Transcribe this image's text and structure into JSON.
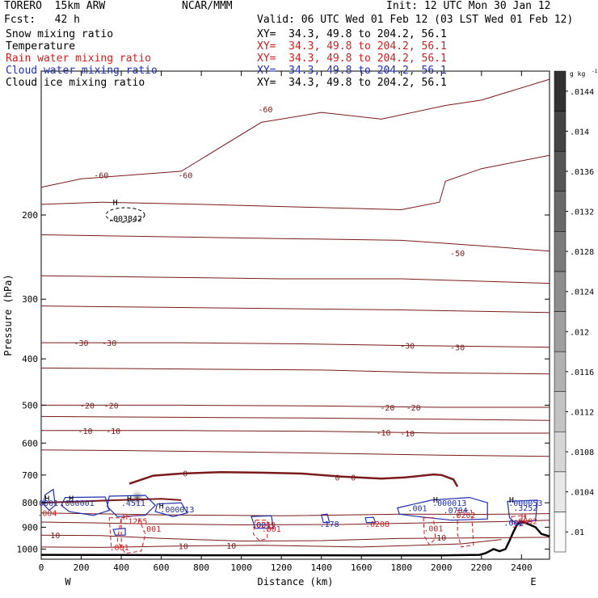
{
  "header": {
    "model": "TORERO  15km ARW",
    "org": "NCAR/MMM",
    "init": "Init: 12 UTC Mon 30 Jan 12",
    "fcst": "Fcst:   42 h",
    "valid": "Valid: 06 UTC Wed 01 Feb 12 (03 LST Wed 01 Feb 12)"
  },
  "fields": [
    {
      "name": "Snow mixing ratio",
      "color": "#000000",
      "xy": ""
    },
    {
      "name": "Temperature",
      "color": "#000000",
      "xy": "XY=  34.3, 49.8 to 204.2, 56.1"
    },
    {
      "name": "Rain water mixing ratio",
      "color": "#cc1f1f",
      "xy": "XY=  34.3, 49.8 to 204.2, 56.1"
    },
    {
      "name": "Cloud water mixing ratio",
      "color": "#1f2faf",
      "xy": "XY=  34.3, 49.8 to 204.2, 56.1"
    },
    {
      "name": "Cloud ice mixing ratio",
      "color": "#000000",
      "xy": "XY=  34.3, 49.8 to 204.2, 56.1"
    }
  ],
  "xy_top": "XY=  34.3, 49.8 to 204.2, 56.1",
  "chart_data": {
    "type": "contour",
    "xlabel": "Distance (km)",
    "ylabel": "Pressure (hPa)",
    "xlim": [
      0,
      2540
    ],
    "ylim": [
      1050,
      100
    ],
    "x_ticks": [
      0,
      200,
      400,
      600,
      800,
      1000,
      1200,
      1400,
      1600,
      1800,
      2000,
      2200,
      2400
    ],
    "y_ticks": [
      200,
      300,
      400,
      500,
      600,
      700,
      800,
      900,
      1000
    ],
    "x_end_labels": {
      "left": "W",
      "right": "E"
    },
    "colorbar": {
      "unit": "g kg",
      "unit_exp": "-1",
      "ticks": [
        ".01",
        ".0104",
        ".0108",
        ".0112",
        ".0116",
        ".012",
        ".0124",
        ".0128",
        ".0132",
        ".0136",
        ".014",
        ".0144"
      ]
    },
    "temperature_labels": [
      {
        "text": "-60",
        "x": 1120,
        "p": 120
      },
      {
        "text": "-60",
        "x": 720,
        "p": 165
      },
      {
        "text": "-60",
        "x": 300,
        "p": 165
      },
      {
        "text": "-50",
        "x": 2080,
        "p": 240
      },
      {
        "text": "-30",
        "x": 200,
        "p": 370
      },
      {
        "text": "-30",
        "x": 340,
        "p": 370
      },
      {
        "text": "-30",
        "x": 1830,
        "p": 375
      },
      {
        "text": "-30",
        "x": 2080,
        "p": 378
      },
      {
        "text": "-20",
        "x": 230,
        "p": 500
      },
      {
        "text": "-20",
        "x": 350,
        "p": 500
      },
      {
        "text": "-20",
        "x": 1730,
        "p": 505
      },
      {
        "text": "-20",
        "x": 1860,
        "p": 505
      },
      {
        "text": "-10",
        "x": 220,
        "p": 565
      },
      {
        "text": "-10",
        "x": 360,
        "p": 565
      },
      {
        "text": "-10",
        "x": 1710,
        "p": 570
      },
      {
        "text": "-10",
        "x": 1830,
        "p": 572
      },
      {
        "text": "0",
        "x": 720,
        "p": 693
      },
      {
        "text": "0",
        "x": 1480,
        "p": 707
      },
      {
        "text": "0",
        "x": 1560,
        "p": 707
      },
      {
        "text": "10",
        "x": 70,
        "p": 935
      },
      {
        "text": "10",
        "x": 710,
        "p": 985
      },
      {
        "text": "10",
        "x": 950,
        "p": 982
      },
      {
        "text": "10",
        "x": 2000,
        "p": 945
      }
    ],
    "isotherms": [
      {
        "t": -60,
        "pts": [
          [
            0,
            175
          ],
          [
            200,
            168
          ],
          [
            700,
            162
          ],
          [
            1100,
            128
          ],
          [
            1400,
            122
          ],
          [
            1700,
            126
          ],
          [
            2020,
            118
          ],
          [
            2200,
            115
          ],
          [
            2540,
            104
          ]
        ]
      },
      {
        "t": -60,
        "pts": [
          [
            0,
            190
          ],
          [
            300,
            188
          ],
          [
            800,
            190
          ],
          [
            1800,
            195
          ],
          [
            1990,
            188
          ],
          [
            2020,
            170
          ],
          [
            2200,
            160
          ],
          [
            2540,
            150
          ]
        ]
      },
      {
        "t": -50,
        "pts": [
          [
            0,
            220
          ],
          [
            600,
            222
          ],
          [
            1200,
            224
          ],
          [
            1800,
            226
          ],
          [
            2200,
            232
          ],
          [
            2540,
            238
          ]
        ]
      },
      {
        "t": -40,
        "pts": [
          [
            0,
            268
          ],
          [
            600,
            270
          ],
          [
            1200,
            272
          ],
          [
            1800,
            272
          ],
          [
            2540,
            278
          ]
        ]
      },
      {
        "t": -35,
        "pts": [
          [
            0,
            310
          ],
          [
            600,
            312
          ],
          [
            1200,
            314
          ],
          [
            1800,
            316
          ],
          [
            2540,
            320
          ]
        ]
      },
      {
        "t": -30,
        "pts": [
          [
            0,
            370
          ],
          [
            700,
            370
          ],
          [
            1300,
            372
          ],
          [
            1800,
            375
          ],
          [
            2540,
            378
          ]
        ]
      },
      {
        "t": -25,
        "pts": [
          [
            0,
            418
          ],
          [
            700,
            420
          ],
          [
            1400,
            422
          ],
          [
            2000,
            428
          ],
          [
            2540,
            430
          ]
        ]
      },
      {
        "t": -20,
        "pts": [
          [
            0,
            500
          ],
          [
            700,
            500
          ],
          [
            1400,
            502
          ],
          [
            2000,
            505
          ],
          [
            2540,
            505
          ]
        ]
      },
      {
        "t": -15,
        "pts": [
          [
            0,
            528
          ],
          [
            700,
            530
          ],
          [
            1400,
            532
          ],
          [
            2000,
            535
          ],
          [
            2540,
            538
          ]
        ]
      },
      {
        "t": -10,
        "pts": [
          [
            0,
            565
          ],
          [
            700,
            565
          ],
          [
            1400,
            567
          ],
          [
            2000,
            572
          ],
          [
            2540,
            572
          ]
        ]
      },
      {
        "t": -5,
        "pts": [
          [
            0,
            620
          ],
          [
            400,
            622
          ],
          [
            800,
            625
          ],
          [
            1200,
            628
          ],
          [
            1600,
            632
          ],
          [
            2000,
            636
          ],
          [
            2540,
            640
          ]
        ]
      },
      {
        "t": 5,
        "pts": [
          [
            0,
            840
          ],
          [
            600,
            848
          ],
          [
            1200,
            852
          ],
          [
            1800,
            845
          ],
          [
            2200,
            846
          ],
          [
            2540,
            843
          ]
        ]
      },
      {
        "t": 7,
        "pts": [
          [
            0,
            878
          ],
          [
            500,
            885
          ],
          [
            1000,
            890
          ],
          [
            1500,
            888
          ],
          [
            2000,
            880
          ],
          [
            2300,
            876
          ],
          [
            2540,
            870
          ]
        ]
      },
      {
        "t": 10,
        "pts": [
          [
            0,
            935
          ],
          [
            300,
            937
          ],
          [
            600,
            950
          ],
          [
            1000,
            962
          ],
          [
            1400,
            960
          ],
          [
            1800,
            950
          ],
          [
            2540,
            945
          ]
        ]
      },
      {
        "t": 15,
        "pts": [
          [
            0,
            990
          ],
          [
            300,
            992
          ],
          [
            700,
            985
          ],
          [
            1100,
            982
          ],
          [
            1600,
            990
          ],
          [
            2100,
            975
          ],
          [
            2300,
            955
          ]
        ]
      }
    ],
    "freezing_level": {
      "t": 0,
      "pts": [
        [
          440,
          730
        ],
        [
          560,
          702
        ],
        [
          700,
          695
        ],
        [
          900,
          690
        ],
        [
          1100,
          692
        ],
        [
          1300,
          695
        ],
        [
          1500,
          705
        ],
        [
          1700,
          712
        ],
        [
          1820,
          708
        ],
        [
          1960,
          698
        ],
        [
          2000,
          700
        ],
        [
          2060,
          715
        ],
        [
          2080,
          740
        ]
      ]
    },
    "secondary_freezing": {
      "t": 0,
      "pts": [
        [
          0,
          800
        ],
        [
          200,
          795
        ],
        [
          380,
          790
        ],
        [
          600,
          785
        ],
        [
          700,
          790
        ]
      ]
    },
    "ice_labels": [
      {
        "text": "H",
        "x": 370,
        "p": 188
      },
      {
        "text": ".003842",
        "x": 420,
        "p": 203
      }
    ],
    "cloud_water_labels": [
      {
        "text": "H",
        "x": 30,
        "p": 782
      },
      {
        "text": ".0001",
        "x": 25,
        "p": 800
      },
      {
        "text": "H",
        "x": 150,
        "p": 782
      },
      {
        "text": ".000001",
        "x": 180,
        "p": 800
      },
      {
        "text": "H",
        "x": 440,
        "p": 782
      },
      {
        "text": ".4511",
        "x": 460,
        "p": 800
      },
      {
        "text": "H",
        "x": 600,
        "p": 810
      },
      {
        "text": ".000013",
        "x": 680,
        "p": 825
      },
      {
        "text": ".001",
        "x": 1880,
        "p": 820
      },
      {
        "text": "H",
        "x": 1970,
        "p": 787
      },
      {
        "text": ".000013",
        "x": 2040,
        "p": 800
      },
      {
        "text": ".0704",
        "x": 2070,
        "p": 828
      },
      {
        "text": "H",
        "x": 2350,
        "p": 787
      },
      {
        "text": ".000053",
        "x": 2420,
        "p": 800
      },
      {
        "text": ".3252",
        "x": 2420,
        "p": 818
      },
      {
        "text": ".001",
        "x": 2360,
        "p": 880
      },
      {
        "text": ".178",
        "x": 1440,
        "p": 885
      },
      {
        "text": ".001",
        "x": 1100,
        "p": 888
      }
    ],
    "rain_labels": [
      {
        "text": ".004",
        "x": 30,
        "p": 840
      },
      {
        "text": "H",
        "x": 420,
        "p": 855
      },
      {
        "text": ".1265",
        "x": 470,
        "p": 873
      },
      {
        "text": ".001",
        "x": 550,
        "p": 905
      },
      {
        "text": ".001",
        "x": 390,
        "p": 990
      },
      {
        "text": ".001",
        "x": 1150,
        "p": 905
      },
      {
        "text": ".0249",
        "x": 1110,
        "p": 888
      },
      {
        "text": ".0208",
        "x": 1680,
        "p": 885
      },
      {
        "text": ".001",
        "x": 1960,
        "p": 903
      },
      {
        "text": ".0202",
        "x": 2110,
        "p": 848
      },
      {
        "text": "H",
        "x": 2410,
        "p": 855
      },
      {
        "text": ".0092",
        "x": 2420,
        "p": 873
      }
    ],
    "cloud_water_regions": [
      {
        "pts": [
          [
            20,
            770
          ],
          [
            60,
            750
          ],
          [
            70,
            810
          ],
          [
            40,
            830
          ],
          [
            10,
            805
          ]
        ]
      },
      {
        "pts": [
          [
            120,
            780
          ],
          [
            320,
            778
          ],
          [
            340,
            830
          ],
          [
            260,
            850
          ],
          [
            140,
            835
          ],
          [
            100,
            810
          ]
        ]
      },
      {
        "pts": [
          [
            340,
            775
          ],
          [
            520,
            772
          ],
          [
            570,
            810
          ],
          [
            520,
            850
          ],
          [
            380,
            855
          ],
          [
            330,
            815
          ]
        ]
      },
      {
        "pts": [
          [
            580,
            805
          ],
          [
            700,
            800
          ],
          [
            730,
            840
          ],
          [
            660,
            855
          ],
          [
            570,
            835
          ]
        ]
      },
      {
        "pts": [
          [
            1050,
            855
          ],
          [
            1150,
            852
          ],
          [
            1160,
            905
          ],
          [
            1070,
            905
          ]
        ]
      },
      {
        "pts": [
          [
            1400,
            848
          ],
          [
            1430,
            845
          ],
          [
            1440,
            880
          ],
          [
            1410,
            880
          ]
        ]
      },
      {
        "pts": [
          [
            1620,
            860
          ],
          [
            1660,
            858
          ],
          [
            1670,
            880
          ],
          [
            1625,
            880
          ]
        ]
      },
      {
        "pts": [
          [
            1780,
            820
          ],
          [
            1950,
            790
          ],
          [
            2140,
            780
          ],
          [
            2230,
            800
          ],
          [
            2230,
            865
          ],
          [
            2050,
            870
          ],
          [
            1880,
            855
          ],
          [
            1790,
            845
          ]
        ]
      },
      {
        "pts": [
          [
            2330,
            795
          ],
          [
            2480,
            790
          ],
          [
            2470,
            870
          ],
          [
            2380,
            890
          ],
          [
            2340,
            860
          ]
        ]
      },
      {
        "pts": [
          [
            360,
            910
          ],
          [
            420,
            905
          ],
          [
            420,
            935
          ],
          [
            370,
            935
          ]
        ]
      }
    ],
    "rain_regions": [
      {
        "pts": [
          [
            400,
            860
          ],
          [
            480,
            850
          ],
          [
            520,
            930
          ],
          [
            500,
            1010
          ],
          [
            420,
            1020
          ],
          [
            380,
            960
          ]
        ]
      },
      {
        "pts": [
          [
            340,
            860
          ],
          [
            400,
            860
          ],
          [
            400,
            990
          ],
          [
            350,
            990
          ]
        ]
      },
      {
        "pts": [
          [
            1070,
            870
          ],
          [
            1130,
            870
          ],
          [
            1130,
            950
          ],
          [
            1090,
            960
          ],
          [
            1060,
            930
          ]
        ]
      },
      {
        "pts": [
          [
            1910,
            860
          ],
          [
            1960,
            860
          ],
          [
            1970,
            950
          ],
          [
            1940,
            980
          ],
          [
            1915,
            940
          ]
        ]
      },
      {
        "pts": [
          [
            2080,
            830
          ],
          [
            2150,
            830
          ],
          [
            2160,
            980
          ],
          [
            2100,
            990
          ],
          [
            2080,
            930
          ]
        ]
      },
      {
        "pts": [
          [
            2350,
            855
          ],
          [
            2420,
            850
          ],
          [
            2420,
            890
          ],
          [
            2360,
            900
          ]
        ]
      }
    ],
    "snow_max": {
      "x": 480,
      "p": 782
    },
    "terrain": {
      "pts": [
        [
          0,
          1028
        ],
        [
          400,
          1029
        ],
        [
          800,
          1030
        ],
        [
          1200,
          1030
        ],
        [
          1600,
          1031
        ],
        [
          2000,
          1031
        ],
        [
          2190,
          1028
        ],
        [
          2220,
          1020
        ],
        [
          2260,
          1000
        ],
        [
          2290,
          1010
        ],
        [
          2320,
          1000
        ],
        [
          2340,
          960
        ],
        [
          2360,
          920
        ],
        [
          2380,
          885
        ],
        [
          2400,
          875
        ],
        [
          2430,
          885
        ],
        [
          2470,
          900
        ],
        [
          2500,
          930
        ],
        [
          2540,
          940
        ]
      ]
    }
  }
}
